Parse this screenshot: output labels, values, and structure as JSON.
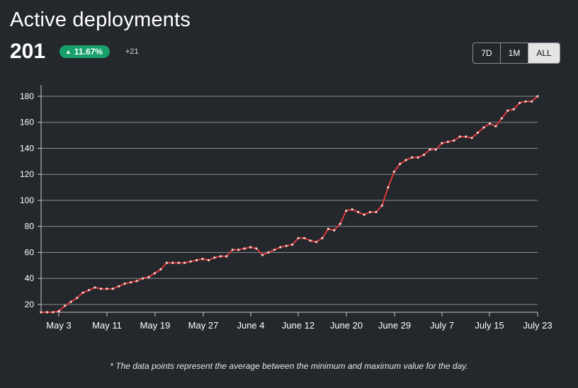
{
  "header": {
    "title": "Active deployments",
    "total": "201",
    "change_pct": "11.67%",
    "change_abs": "+21"
  },
  "range_buttons": [
    {
      "label": "7D",
      "active": false
    },
    {
      "label": "1M",
      "active": false
    },
    {
      "label": "ALL",
      "active": true
    }
  ],
  "footnote": "* The data points represent the average between the minimum and maximum value for the day.",
  "colors": {
    "background": "#24272b",
    "line": "#e03a3a",
    "badge": "#17a06a",
    "grid": "#8a8d92"
  },
  "chart_data": {
    "type": "line",
    "xlabel": "",
    "ylabel": "",
    "ylim": [
      14,
      180
    ],
    "yticks": [
      20,
      40,
      60,
      80,
      100,
      120,
      140,
      160,
      180
    ],
    "xticks": [
      "May 3",
      "May 11",
      "May 19",
      "May 27",
      "June 4",
      "June 12",
      "June 20",
      "June 29",
      "July 7",
      "July 15",
      "July 23"
    ],
    "grid": true,
    "legend": "none",
    "series": [
      {
        "values": [
          14,
          14,
          14,
          15,
          19,
          22,
          25,
          29,
          31,
          33,
          32,
          32,
          32,
          34,
          36,
          37,
          38,
          40,
          41,
          44,
          47,
          52,
          52,
          52,
          52,
          53,
          54,
          55,
          54,
          56,
          57,
          57,
          62,
          62,
          63,
          64,
          63,
          58,
          60,
          62,
          64,
          65,
          66,
          71,
          71,
          69,
          68,
          71,
          78,
          77,
          82,
          92,
          93,
          91,
          89,
          91,
          91,
          96,
          110,
          122,
          128,
          131,
          133,
          133,
          135,
          139,
          139,
          144,
          145,
          146,
          149,
          149,
          148,
          152,
          156,
          159,
          157,
          163,
          169,
          170,
          175,
          176,
          176,
          180
        ]
      }
    ]
  }
}
